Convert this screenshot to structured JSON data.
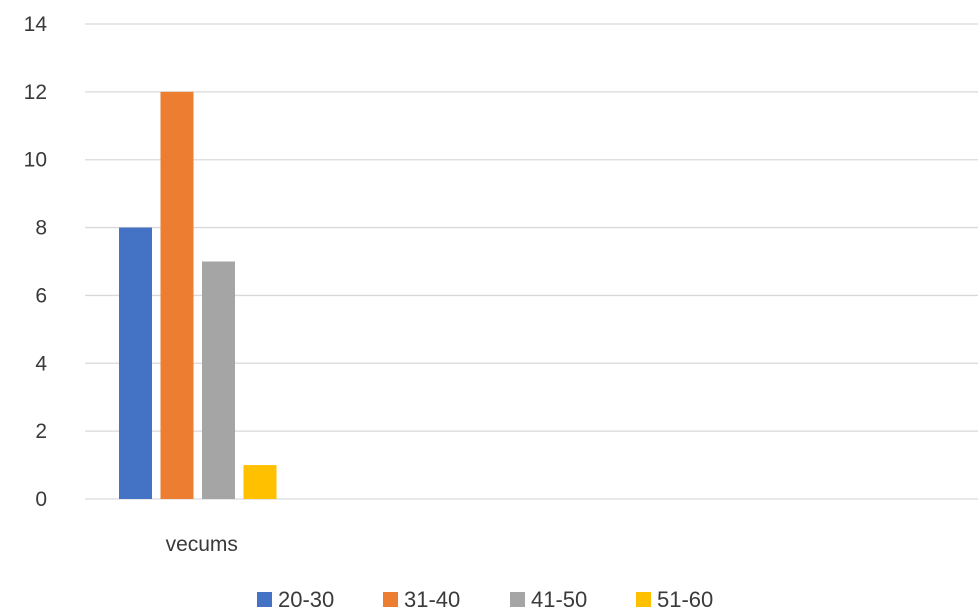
{
  "chart_data": {
    "type": "bar",
    "title": "",
    "xlabel": "",
    "ylabel": "",
    "categories": [
      "vecums"
    ],
    "series": [
      {
        "name": "20-30",
        "values": [
          8
        ],
        "color": "#4472C4"
      },
      {
        "name": "31-40",
        "values": [
          12
        ],
        "color": "#ED7D31"
      },
      {
        "name": "41-50",
        "values": [
          7
        ],
        "color": "#A5A5A5"
      },
      {
        "name": "51-60",
        "values": [
          1
        ],
        "color": "#FFC000"
      }
    ],
    "ylim": [
      0,
      14
    ],
    "yticks": [
      "0",
      "2",
      "4",
      "6",
      "8",
      "10",
      "12",
      "14"
    ],
    "grid": true,
    "legend_position": "bottom"
  }
}
